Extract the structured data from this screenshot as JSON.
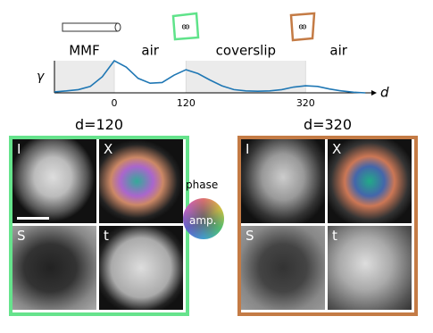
{
  "chart_data": {
    "type": "line",
    "xlabel": "d",
    "ylabel": "γ",
    "x": [
      -100,
      -80,
      -60,
      -40,
      -20,
      0,
      20,
      40,
      60,
      80,
      100,
      120,
      140,
      160,
      180,
      200,
      220,
      240,
      260,
      280,
      300,
      320,
      340,
      360,
      380,
      400,
      420
    ],
    "series": [
      {
        "color": "#1f77b4",
        "values": [
          0.03,
          0.06,
          0.1,
          0.2,
          0.5,
          1.0,
          0.8,
          0.45,
          0.3,
          0.32,
          0.55,
          0.72,
          0.6,
          0.4,
          0.22,
          0.1,
          0.06,
          0.05,
          0.06,
          0.1,
          0.18,
          0.22,
          0.2,
          0.12,
          0.06,
          0.02,
          0.0
        ]
      }
    ],
    "xlim": [
      -100,
      430
    ],
    "ylim": [
      0,
      1
    ],
    "xticks": [
      0,
      120,
      320
    ],
    "regions": [
      {
        "label": "MMF",
        "range": [
          -100,
          0
        ],
        "shaded": true
      },
      {
        "label": "air",
        "range": [
          0,
          120
        ],
        "shaded": false
      },
      {
        "label": "coverslip",
        "range": [
          120,
          320
        ],
        "shaded": true
      },
      {
        "label": "air",
        "range": [
          320,
          430
        ],
        "shaded": false
      }
    ]
  },
  "panels": [
    {
      "title": "d=120",
      "color": "#66e38c",
      "labels": [
        "I",
        "X",
        "S",
        "t"
      ]
    },
    {
      "title": "d=320",
      "color": "#c47b45",
      "labels": [
        "I",
        "X",
        "S",
        "t"
      ]
    }
  ],
  "colorwheel": {
    "phase": "phase",
    "amp": "amp."
  }
}
